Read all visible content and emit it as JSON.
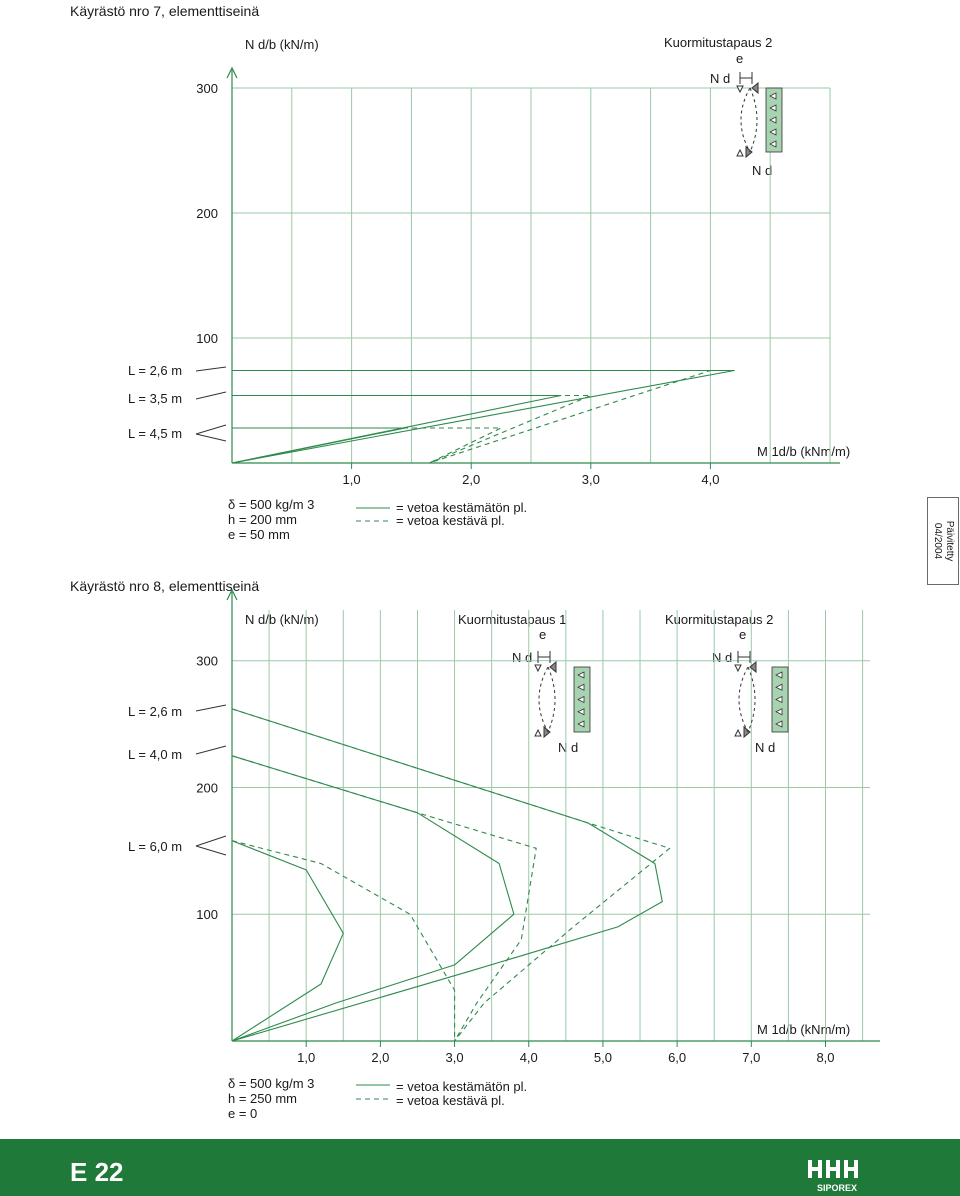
{
  "page": {
    "page_number": "E 22",
    "brand": "SIPOREX",
    "updated_label": "Päivitetty",
    "updated_date": "04/2004",
    "colors": {
      "curve": "#2f8a4c",
      "grid": "#9bc9a8",
      "footer": "#1f7a3a",
      "panel": "#a8d3b0"
    }
  },
  "chart_data": [
    {
      "id": "kayrasto-7",
      "type": "line",
      "title": "Käyrästö nro 7, elementtiseinä",
      "ylabel": "N d/b (kN/m)",
      "xlabel": "M 1d/b (kNm/m)",
      "xlim": [
        0,
        5.0
      ],
      "ylim": [
        0,
        300
      ],
      "x_ticks": [
        "1,0",
        "2,0",
        "3,0",
        "4,0"
      ],
      "x_tick_values": [
        1,
        2,
        3,
        4
      ],
      "y_ticks": [
        "100",
        "200",
        "300"
      ],
      "y_tick_values": [
        100,
        200,
        300
      ],
      "grid": true,
      "load_case": "Kuormitustapaus 2",
      "load_symbols": {
        "e": "e",
        "top": "N d",
        "bottom": "N d"
      },
      "params": [
        "δ = 500 kg/m 3",
        "h = 200 mm",
        "e = 50 mm"
      ],
      "legend": [
        "= vetoa kestämätön pl.",
        "= vetoa kestävä pl."
      ],
      "series": [
        {
          "name": "L = 2,6 m",
          "style": "solid",
          "points": [
            [
              0,
              74
            ],
            [
              4.2,
              74
            ],
            [
              0,
              0
            ]
          ]
        },
        {
          "name": "L = 2,6 m",
          "style": "dashed",
          "points": [
            [
              0,
              74
            ],
            [
              4.0,
              74
            ],
            [
              1.65,
              0
            ]
          ]
        },
        {
          "name": "L = 3,5 m",
          "style": "solid",
          "points": [
            [
              0,
              54
            ],
            [
              2.75,
              54
            ],
            [
              0,
              0
            ]
          ]
        },
        {
          "name": "L = 3,5 m",
          "style": "dashed",
          "points": [
            [
              0,
              54
            ],
            [
              3.0,
              54
            ],
            [
              1.65,
              0
            ]
          ]
        },
        {
          "name": "L = 4,5 m",
          "style": "solid",
          "points": [
            [
              0,
              28
            ],
            [
              1.45,
              28
            ],
            [
              0,
              0
            ]
          ]
        },
        {
          "name": "L = 4,5 m",
          "style": "dashed",
          "points": [
            [
              0,
              28
            ],
            [
              2.25,
              28
            ],
            [
              1.65,
              0
            ]
          ]
        }
      ]
    },
    {
      "id": "kayrasto-8",
      "type": "line",
      "title": "Käyrästö nro 8, elementtiseinä",
      "ylabel": "N d/b (kN/m)",
      "xlabel": "M 1d/b (kNm/m)",
      "xlim": [
        0,
        8.6
      ],
      "ylim": [
        0,
        340
      ],
      "x_ticks": [
        "1,0",
        "2,0",
        "3,0",
        "4,0",
        "5,0",
        "6,0",
        "7,0",
        "8,0"
      ],
      "x_tick_values": [
        1,
        2,
        3,
        4,
        5,
        6,
        7,
        8
      ],
      "y_ticks": [
        "100",
        "200",
        "300"
      ],
      "y_tick_values": [
        100,
        200,
        300
      ],
      "grid": true,
      "load_cases": [
        {
          "label": "Kuormitustapaus 1",
          "e": "e",
          "top": "N d",
          "bottom": "N d"
        },
        {
          "label": "Kuormitustapaus 2",
          "e": "e",
          "top": "N d",
          "bottom": "N d"
        }
      ],
      "params": [
        "δ = 500 kg/m 3",
        "h = 250 mm",
        "e = 0"
      ],
      "legend": [
        "= vetoa kestämätön pl.",
        "= vetoa kestävä pl."
      ],
      "series": [
        {
          "name": "L = 2,6 m",
          "style": "solid",
          "points": [
            [
              0,
              262
            ],
            [
              4.8,
              172
            ],
            [
              5.7,
              140
            ],
            [
              5.8,
              110
            ],
            [
              5.2,
              90
            ],
            [
              3.2,
              55
            ],
            [
              0,
              0
            ]
          ]
        },
        {
          "name": "L = 2,6 m",
          "style": "dashed",
          "points": [
            [
              0,
              262
            ],
            [
              4.8,
              172
            ],
            [
              5.9,
              152
            ],
            [
              4.6,
              90
            ],
            [
              3.4,
              30
            ],
            [
              3.0,
              0
            ]
          ]
        },
        {
          "name": "L = 4,0 m",
          "style": "solid",
          "points": [
            [
              0,
              225
            ],
            [
              2.5,
              180
            ],
            [
              3.6,
              140
            ],
            [
              3.8,
              100
            ],
            [
              3.0,
              60
            ],
            [
              1.4,
              30
            ],
            [
              0,
              0
            ]
          ]
        },
        {
          "name": "L = 4,0 m",
          "style": "dashed",
          "points": [
            [
              0,
              225
            ],
            [
              2.5,
              180
            ],
            [
              4.1,
              152
            ],
            [
              3.9,
              80
            ],
            [
              3.3,
              30
            ],
            [
              3.0,
              0
            ]
          ]
        },
        {
          "name": "L = 6,0 m",
          "style": "solid",
          "points": [
            [
              0,
              158
            ],
            [
              1.0,
              135
            ],
            [
              1.5,
              85
            ],
            [
              1.2,
              45
            ],
            [
              0,
              0
            ]
          ]
        },
        {
          "name": "L = 6,0 m",
          "style": "dashed",
          "points": [
            [
              0,
              158
            ],
            [
              1.2,
              140
            ],
            [
              2.4,
              100
            ],
            [
              3.0,
              40
            ],
            [
              3.0,
              0
            ]
          ]
        }
      ]
    }
  ]
}
